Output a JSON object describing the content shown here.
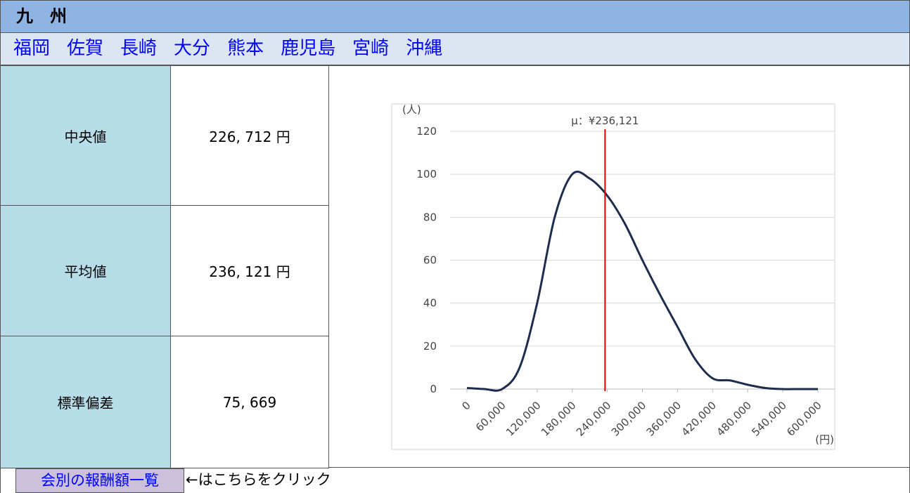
{
  "header": {
    "title": "九　州"
  },
  "links": [
    "福岡",
    "佐賀",
    "長崎",
    "大分",
    "熊本",
    "鹿児島",
    "宮崎",
    "沖縄"
  ],
  "stats": [
    {
      "label": "中央値",
      "value": "226, 712 円"
    },
    {
      "label": "平均値",
      "value": "236, 121 円"
    },
    {
      "label": "標準偏差",
      "value": "75, 669"
    }
  ],
  "chart_data": {
    "type": "line",
    "y_label": "(人)",
    "x_label": "(円)",
    "annotation": "μ：¥236,121",
    "mean": 236121,
    "mean_color": "#e00000",
    "x": [
      0,
      30000,
      60000,
      90000,
      120000,
      150000,
      180000,
      210000,
      240000,
      270000,
      300000,
      330000,
      360000,
      390000,
      420000,
      450000,
      480000,
      510000,
      540000,
      570000,
      600000
    ],
    "values": [
      0.5,
      0,
      0,
      10,
      40,
      80,
      100,
      98,
      90,
      77,
      60,
      44,
      29,
      14,
      5,
      4,
      2,
      0.5,
      0,
      0,
      0
    ],
    "color": "#1f2d4d",
    "xlim": [
      0,
      600000
    ],
    "ylim": [
      0,
      120
    ],
    "xticks": [
      0,
      {
        "value": 60000,
        "label": "60,000"
      },
      {
        "value": 120000,
        "label": "120,000"
      },
      {
        "value": 180000,
        "label": "180,000"
      },
      {
        "value": 240000,
        "label": "240,000"
      },
      {
        "value": 300000,
        "label": "300,000"
      },
      {
        "value": 360000,
        "label": "360,000"
      },
      {
        "value": 420000,
        "label": "420,000"
      },
      {
        "value": 480000,
        "label": "480,000"
      },
      {
        "value": 540000,
        "label": "540,000"
      },
      {
        "value": 600000,
        "label": "600,000"
      }
    ],
    "yticks": [
      0,
      20,
      40,
      60,
      80,
      100,
      120
    ],
    "grid": true
  },
  "footer": {
    "button": "会別の報酬額一覧",
    "text": "←はこちらをクリック"
  }
}
